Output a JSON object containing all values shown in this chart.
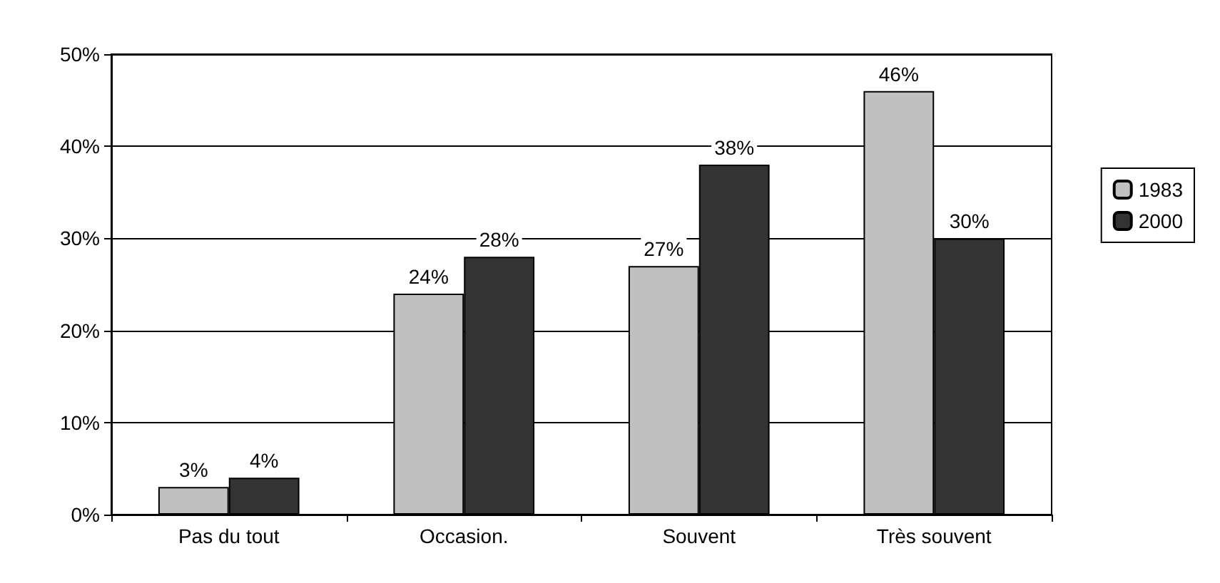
{
  "chart_data": {
    "type": "bar",
    "categories": [
      "Pas du tout",
      "Occasion.",
      "Souvent",
      "Très souvent"
    ],
    "series": [
      {
        "name": "1983",
        "color": "#c0c0c0",
        "values": [
          3,
          24,
          27,
          46
        ],
        "value_labels": [
          "3%",
          "24%",
          "27%",
          "46%"
        ]
      },
      {
        "name": "2000",
        "color": "#333333",
        "values": [
          4,
          28,
          38,
          30
        ],
        "value_labels": [
          "4%",
          "28%",
          "38%",
          "30%"
        ]
      }
    ],
    "ylim": [
      0,
      50
    ],
    "yticks": [
      {
        "value": 0,
        "label": "0%"
      },
      {
        "value": 10,
        "label": "10%"
      },
      {
        "value": 20,
        "label": "20%"
      },
      {
        "value": 30,
        "label": "30%"
      },
      {
        "value": 40,
        "label": "40%"
      },
      {
        "value": 50,
        "label": "50%"
      }
    ],
    "grid": "y",
    "legend": "right"
  }
}
